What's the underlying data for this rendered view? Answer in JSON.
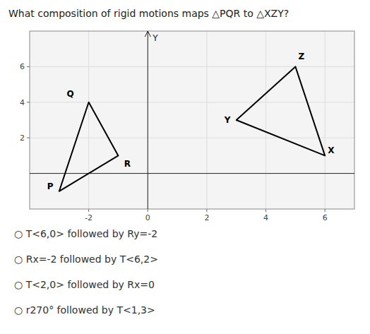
{
  "chart_data": {
    "type": "polygon",
    "title": "What composition of rigid motions maps △PQR to △XZY?",
    "y_label": "Y",
    "xlim": [
      -4,
      7
    ],
    "ylim": [
      -2,
      8
    ],
    "xticks": [
      -2,
      0,
      2,
      4,
      6
    ],
    "yticks": [
      2,
      4,
      6
    ],
    "grid": true,
    "series": [
      {
        "x": [
          -3,
          -2,
          -1
        ],
        "values": [
          -1,
          4,
          1
        ],
        "color": "#000000"
      },
      {
        "x": [
          6,
          5,
          3
        ],
        "values": [
          1,
          6,
          3
        ],
        "color": "#000000"
      }
    ],
    "annotations": [
      {
        "text": "P",
        "x": -3.3,
        "y": -1.0
      },
      {
        "text": "Q",
        "x": -2.5,
        "y": 4.2
      },
      {
        "text": "R",
        "x": -0.8,
        "y": 0.8
      },
      {
        "text": "X",
        "x": 6.1,
        "y": 1.3
      },
      {
        "text": "Z",
        "x": 5.1,
        "y": 6.3
      },
      {
        "text": "Y",
        "x": 2.8,
        "y": 3.0
      },
      {
        "text": "○ T<6,0> followed by Ry=-2"
      },
      {
        "text": "○ Rx=-2 followed by T<6,2>"
      },
      {
        "text": "○ T<2,0> followed by Rx=0"
      },
      {
        "text": "○ r270° followed by T<1,3>"
      }
    ]
  }
}
